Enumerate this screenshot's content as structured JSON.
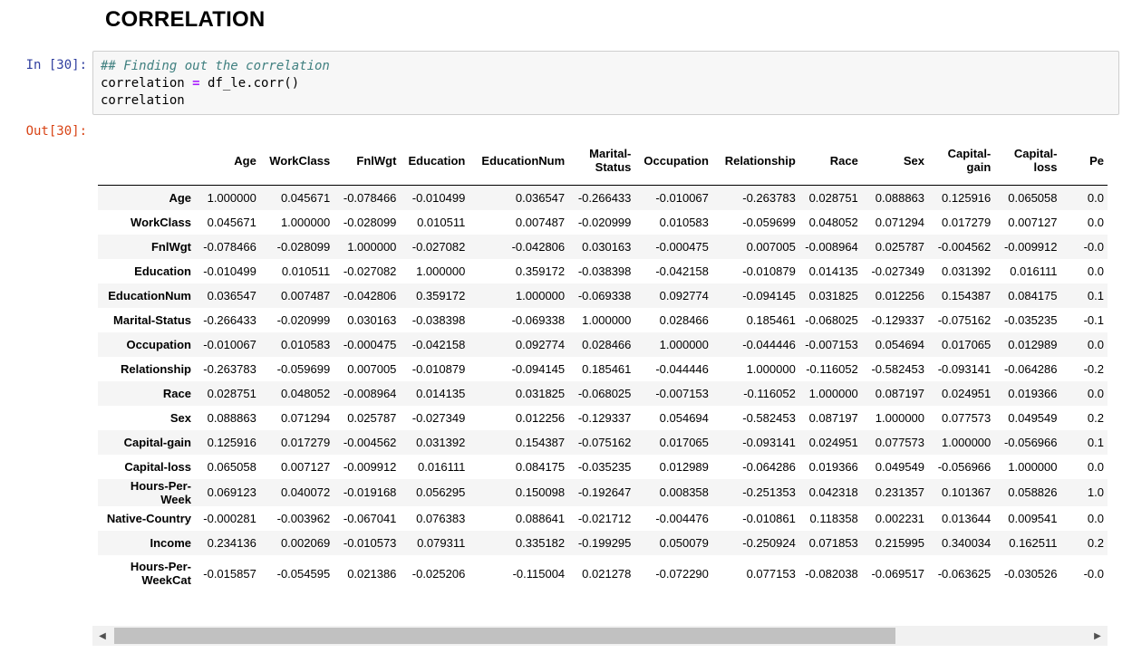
{
  "heading": "CORRELATION",
  "cell_in": {
    "prompt": "In [30]:",
    "comment": "## Finding out the correlation",
    "line2_lhs": "correlation ",
    "line2_op": "=",
    "line2_rhs": " df_le.corr()",
    "line3": "correlation"
  },
  "cell_out": {
    "prompt": "Out[30]:"
  },
  "table": {
    "columns": [
      "Age",
      "WorkClass",
      "FnlWgt",
      "Education",
      "EducationNum",
      "Marital-Status",
      "Occupation",
      "Relationship",
      "Race",
      "Sex",
      "Capital-gain",
      "Capital-loss",
      "Pe"
    ],
    "rows": [
      {
        "label": "Age",
        "values": [
          "1.000000",
          "0.045671",
          "-0.078466",
          "-0.010499",
          "0.036547",
          "-0.266433",
          "-0.010067",
          "-0.263783",
          "0.028751",
          "0.088863",
          "0.125916",
          "0.065058",
          "0.0"
        ]
      },
      {
        "label": "WorkClass",
        "values": [
          "0.045671",
          "1.000000",
          "-0.028099",
          "0.010511",
          "0.007487",
          "-0.020999",
          "0.010583",
          "-0.059699",
          "0.048052",
          "0.071294",
          "0.017279",
          "0.007127",
          "0.0"
        ]
      },
      {
        "label": "FnlWgt",
        "values": [
          "-0.078466",
          "-0.028099",
          "1.000000",
          "-0.027082",
          "-0.042806",
          "0.030163",
          "-0.000475",
          "0.007005",
          "-0.008964",
          "0.025787",
          "-0.004562",
          "-0.009912",
          "-0.0"
        ]
      },
      {
        "label": "Education",
        "values": [
          "-0.010499",
          "0.010511",
          "-0.027082",
          "1.000000",
          "0.359172",
          "-0.038398",
          "-0.042158",
          "-0.010879",
          "0.014135",
          "-0.027349",
          "0.031392",
          "0.016111",
          "0.0"
        ]
      },
      {
        "label": "EducationNum",
        "values": [
          "0.036547",
          "0.007487",
          "-0.042806",
          "0.359172",
          "1.000000",
          "-0.069338",
          "0.092774",
          "-0.094145",
          "0.031825",
          "0.012256",
          "0.154387",
          "0.084175",
          "0.1"
        ]
      },
      {
        "label": "Marital-Status",
        "values": [
          "-0.266433",
          "-0.020999",
          "0.030163",
          "-0.038398",
          "-0.069338",
          "1.000000",
          "0.028466",
          "0.185461",
          "-0.068025",
          "-0.129337",
          "-0.075162",
          "-0.035235",
          "-0.1"
        ]
      },
      {
        "label": "Occupation",
        "values": [
          "-0.010067",
          "0.010583",
          "-0.000475",
          "-0.042158",
          "0.092774",
          "0.028466",
          "1.000000",
          "-0.044446",
          "-0.007153",
          "0.054694",
          "0.017065",
          "0.012989",
          "0.0"
        ]
      },
      {
        "label": "Relationship",
        "values": [
          "-0.263783",
          "-0.059699",
          "0.007005",
          "-0.010879",
          "-0.094145",
          "0.185461",
          "-0.044446",
          "1.000000",
          "-0.116052",
          "-0.582453",
          "-0.093141",
          "-0.064286",
          "-0.2"
        ]
      },
      {
        "label": "Race",
        "values": [
          "0.028751",
          "0.048052",
          "-0.008964",
          "0.014135",
          "0.031825",
          "-0.068025",
          "-0.007153",
          "-0.116052",
          "1.000000",
          "0.087197",
          "0.024951",
          "0.019366",
          "0.0"
        ]
      },
      {
        "label": "Sex",
        "values": [
          "0.088863",
          "0.071294",
          "0.025787",
          "-0.027349",
          "0.012256",
          "-0.129337",
          "0.054694",
          "-0.582453",
          "0.087197",
          "1.000000",
          "0.077573",
          "0.049549",
          "0.2"
        ]
      },
      {
        "label": "Capital-gain",
        "values": [
          "0.125916",
          "0.017279",
          "-0.004562",
          "0.031392",
          "0.154387",
          "-0.075162",
          "0.017065",
          "-0.093141",
          "0.024951",
          "0.077573",
          "1.000000",
          "-0.056966",
          "0.1"
        ]
      },
      {
        "label": "Capital-loss",
        "values": [
          "0.065058",
          "0.007127",
          "-0.009912",
          "0.016111",
          "0.084175",
          "-0.035235",
          "0.012989",
          "-0.064286",
          "0.019366",
          "0.049549",
          "-0.056966",
          "1.000000",
          "0.0"
        ]
      },
      {
        "label": "Hours-Per-Week",
        "values": [
          "0.069123",
          "0.040072",
          "-0.019168",
          "0.056295",
          "0.150098",
          "-0.192647",
          "0.008358",
          "-0.251353",
          "0.042318",
          "0.231357",
          "0.101367",
          "0.058826",
          "1.0"
        ]
      },
      {
        "label": "Native-Country",
        "values": [
          "-0.000281",
          "-0.003962",
          "-0.067041",
          "0.076383",
          "0.088641",
          "-0.021712",
          "-0.004476",
          "-0.010861",
          "0.118358",
          "0.002231",
          "0.013644",
          "0.009541",
          "0.0"
        ]
      },
      {
        "label": "Income",
        "values": [
          "0.234136",
          "0.002069",
          "-0.010573",
          "0.079311",
          "0.335182",
          "-0.199295",
          "0.050079",
          "-0.250924",
          "0.071853",
          "0.215995",
          "0.340034",
          "0.162511",
          "0.2"
        ]
      },
      {
        "label": "Hours-Per-WeekCat",
        "values": [
          "-0.015857",
          "-0.054595",
          "0.021386",
          "-0.025206",
          "-0.115004",
          "0.021278",
          "-0.072290",
          "0.077153",
          "-0.082038",
          "-0.069517",
          "-0.063625",
          "-0.030526",
          "-0.0"
        ]
      }
    ]
  },
  "scrollbar": {
    "left_arrow": "◀",
    "right_arrow": "▶",
    "position_fraction": 0.0
  }
}
